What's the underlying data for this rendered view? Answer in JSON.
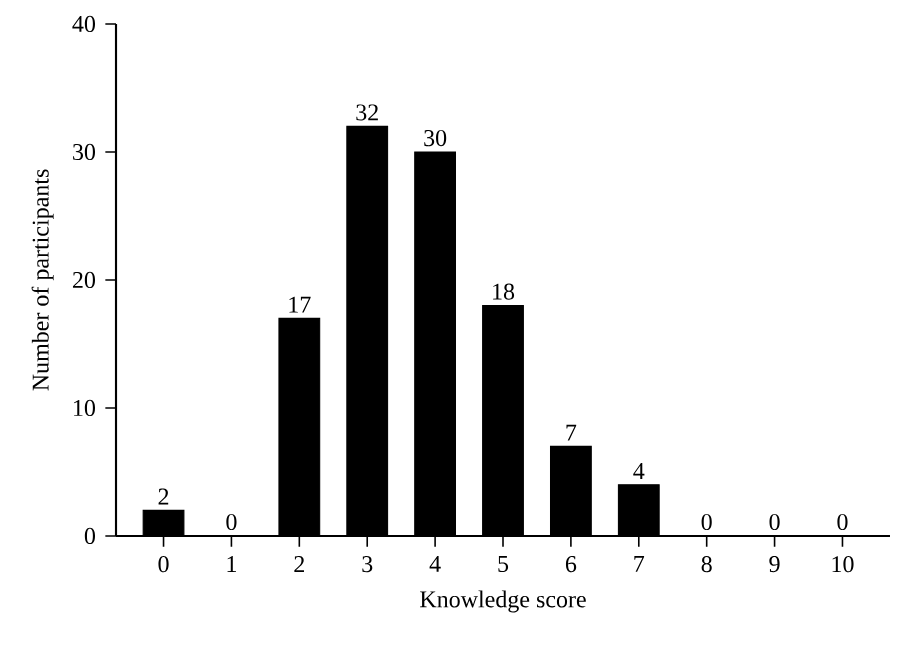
{
  "chart_data": {
    "type": "bar",
    "xlabel": "Knowledge score",
    "ylabel": "Number of participants",
    "categories": [
      "0",
      "1",
      "2",
      "3",
      "4",
      "5",
      "6",
      "7",
      "8",
      "9",
      "10"
    ],
    "values": [
      2,
      0,
      17,
      32,
      30,
      18,
      7,
      4,
      0,
      0,
      0
    ],
    "color": "#000000",
    "ylim": [
      0,
      40
    ],
    "yticks": [
      0,
      10,
      20,
      30,
      40
    ],
    "data_labels": true
  }
}
